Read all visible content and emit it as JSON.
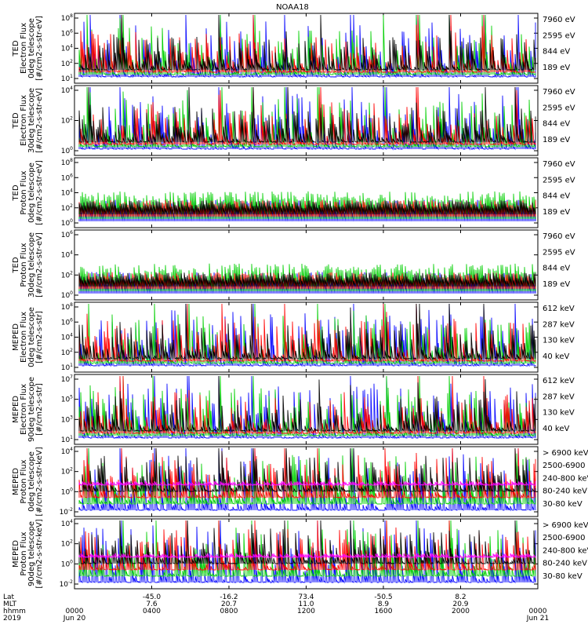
{
  "chart_data": {
    "type": "line",
    "title": "NOAA18",
    "panels": [
      {
        "ylabel_lines": [
          "TED",
          "Electron Flux",
          "0deg telescope",
          "[#/cm2-s-str-eV]"
        ],
        "y_exponents": [
          "1",
          "2",
          "4",
          "6",
          "8"
        ],
        "legend": [
          {
            "label": "7960 eV",
            "color": "#000000"
          },
          {
            "label": "2595 eV",
            "color": "#ff0000"
          },
          {
            "label": "844 eV",
            "color": "#00d000"
          },
          {
            "label": "189 eV",
            "color": "#0000ff"
          }
        ]
      },
      {
        "ylabel_lines": [
          "TED",
          "Electron Flux",
          "30deg telescope",
          "[#/cm2-s-str-eV]"
        ],
        "y_exponents": [
          "0",
          "2",
          "4"
        ],
        "legend": [
          {
            "label": "7960 eV",
            "color": "#000000"
          },
          {
            "label": "2595 eV",
            "color": "#ff0000"
          },
          {
            "label": "844 eV",
            "color": "#00d000"
          },
          {
            "label": "189 eV",
            "color": "#0000ff"
          }
        ]
      },
      {
        "ylabel_lines": [
          "TED",
          "Proton Flux",
          "0deg telescope",
          "[#/cm2-s-str-eV]"
        ],
        "y_exponents": [
          "0",
          "2",
          "4",
          "6",
          "8"
        ],
        "legend": [
          {
            "label": "7960 eV",
            "color": "#000000"
          },
          {
            "label": "2595 eV",
            "color": "#ff0000"
          },
          {
            "label": "844 eV",
            "color": "#00d000"
          },
          {
            "label": "189 eV",
            "color": "#0000ff"
          }
        ]
      },
      {
        "ylabel_lines": [
          "TED",
          "Proton Flux",
          "30deg telescope",
          "[#/cm2-s-str-eV]"
        ],
        "y_exponents": [
          "0",
          "2",
          "4",
          "6"
        ],
        "legend": [
          {
            "label": "7960 eV",
            "color": "#000000"
          },
          {
            "label": "2595 eV",
            "color": "#ff0000"
          },
          {
            "label": "844 eV",
            "color": "#00d000"
          },
          {
            "label": "189 eV",
            "color": "#0000ff"
          }
        ]
      },
      {
        "ylabel_lines": [
          "MEPED",
          "Electron Flux",
          "0deg telescope",
          "[#/cm2-s-str]"
        ],
        "y_exponents": [
          "1",
          "2",
          "4",
          "6",
          "8"
        ],
        "legend": [
          {
            "label": "612 keV",
            "color": "#000000"
          },
          {
            "label": "287 keV",
            "color": "#ff0000"
          },
          {
            "label": "130 keV",
            "color": "#00d000"
          },
          {
            "label": "40 keV",
            "color": "#0000ff"
          }
        ]
      },
      {
        "ylabel_lines": [
          "MEPED",
          "Electron Flux",
          "90deg telescope",
          "[#/cm2-s-str]"
        ],
        "y_exponents": [
          "1",
          "3",
          "5",
          "7"
        ],
        "legend": [
          {
            "label": "612 keV",
            "color": "#000000"
          },
          {
            "label": "287 keV",
            "color": "#ff0000"
          },
          {
            "label": "130 keV",
            "color": "#00d000"
          },
          {
            "label": "40 keV",
            "color": "#0000ff"
          }
        ]
      },
      {
        "ylabel_lines": [
          "MEPED",
          "Proton Flux",
          "0deg telescope",
          "[#/cm2-s-str-keV]"
        ],
        "y_exponents": [
          "-2",
          "0",
          "2",
          "4"
        ],
        "legend": [
          {
            "label": "> 6900 keV",
            "color": "#ff00ff"
          },
          {
            "label": "2500-6900",
            "color": "#000000"
          },
          {
            "label": "240-800 keV",
            "color": "#ff0000"
          },
          {
            "label": "80-240 keV",
            "color": "#00d000"
          },
          {
            "label": "30-80 keV",
            "color": "#0000ff"
          }
        ]
      },
      {
        "ylabel_lines": [
          "MEPED",
          "Proton Flux",
          "90deg telescope",
          "[#/cm2-s-str-keV]"
        ],
        "y_exponents": [
          "-2",
          "0",
          "2",
          "4"
        ],
        "legend": [
          {
            "label": "> 6900 keV",
            "color": "#ff00ff"
          },
          {
            "label": "2500-6900",
            "color": "#000000"
          },
          {
            "label": "240-800 keV",
            "color": "#ff0000"
          },
          {
            "label": "80-240 keV",
            "color": "#00d000"
          },
          {
            "label": "30-80 keV",
            "color": "#0000ff"
          }
        ]
      }
    ],
    "x_axis": {
      "row_labels": [
        "Lat",
        "MLT",
        "hhmm",
        "2019"
      ],
      "ticks": [
        {
          "hour": 0,
          "lat": "",
          "mlt": "",
          "hhmm": "0000",
          "date": "Jun 20"
        },
        {
          "hour": 4,
          "lat": "-45.0",
          "mlt": "7.6",
          "hhmm": "0400",
          "date": ""
        },
        {
          "hour": 8,
          "lat": "-16.2",
          "mlt": "20.7",
          "hhmm": "0800",
          "date": ""
        },
        {
          "hour": 12,
          "lat": "73.4",
          "mlt": "11.0",
          "hhmm": "1200",
          "date": ""
        },
        {
          "hour": 16,
          "lat": "-50.5",
          "mlt": "8.9",
          "hhmm": "1600",
          "date": ""
        },
        {
          "hour": 20,
          "lat": "8.2",
          "mlt": "20.9",
          "hhmm": "2000",
          "date": ""
        },
        {
          "hour": 24,
          "lat": "",
          "mlt": "",
          "hhmm": "0000",
          "date": "Jun 21"
        }
      ],
      "range_hours": [
        0,
        24
      ]
    }
  }
}
